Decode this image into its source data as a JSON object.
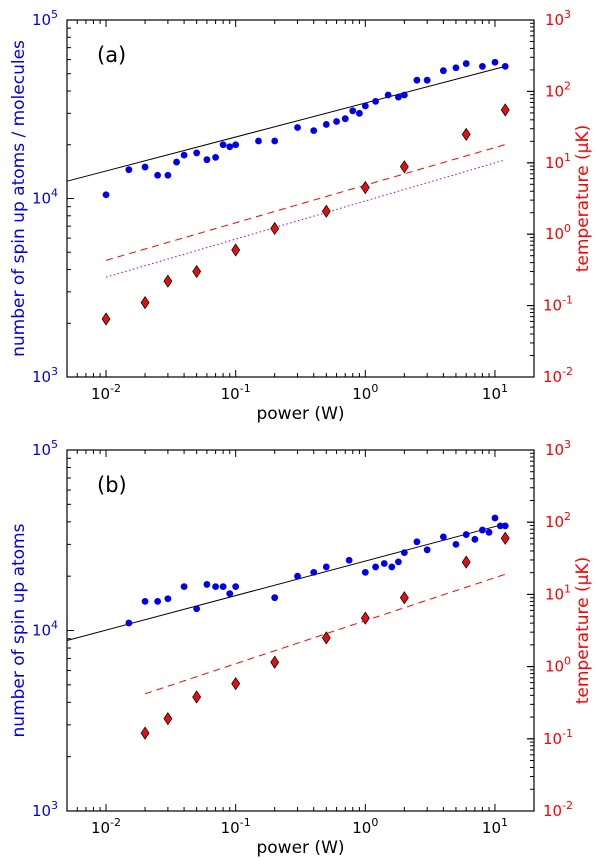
{
  "colors": {
    "atoms": "#0000ee",
    "temperature": "#ff0000",
    "diamond_fill": "#dd1111",
    "fit_line": "#000000",
    "dotted_line": "#aa00cc"
  },
  "chart_data": [
    {
      "type": "scatter",
      "panel_label": "(a)",
      "xlabel": "power (W)",
      "ylabel_left": "number of spin up atoms /  molecules",
      "ylabel_right": "temperature (μK)",
      "xscale": "log",
      "yscale_left": "log",
      "yscale_right": "log",
      "xlim": [
        0.005,
        20
      ],
      "ylim_left": [
        1000,
        100000
      ],
      "ylim_right": [
        0.01,
        1000
      ],
      "x_ticks": [
        "10",
        "10",
        "10",
        "10"
      ],
      "x_tick_exponents": [
        "-2",
        "-1",
        "0",
        "1"
      ],
      "y_left_ticks": [
        "10",
        "10",
        "10"
      ],
      "y_left_tick_exponents": [
        "3",
        "4",
        "5"
      ],
      "y_right_ticks": [
        "10",
        "10",
        "10",
        "10",
        "10",
        "10"
      ],
      "y_right_tick_exponents": [
        "-2",
        "-1",
        "0",
        "1",
        "2",
        "3"
      ],
      "series": [
        {
          "axis": "left",
          "marker": "circle",
          "x": [
            0.01,
            0.015,
            0.02,
            0.025,
            0.03,
            0.035,
            0.04,
            0.05,
            0.06,
            0.07,
            0.08,
            0.09,
            0.1,
            0.15,
            0.2,
            0.3,
            0.4,
            0.5,
            0.6,
            0.7,
            0.8,
            0.9,
            1.0,
            1.2,
            1.5,
            1.8,
            2.0,
            2.5,
            3.0,
            4.0,
            5.0,
            6.0,
            8.0,
            10.0,
            12.0
          ],
          "y": [
            10500,
            14500,
            15000,
            13500,
            13500,
            16000,
            17500,
            18000,
            16500,
            17000,
            20000,
            19500,
            20000,
            21000,
            21000,
            25000,
            24000,
            26000,
            27000,
            28000,
            31000,
            30000,
            33000,
            35000,
            38000,
            37000,
            38000,
            46000,
            46000,
            52000,
            54000,
            57000,
            55000,
            58000,
            55000
          ]
        },
        {
          "axis": "right",
          "marker": "diamond",
          "x": [
            0.01,
            0.02,
            0.03,
            0.05,
            0.1,
            0.2,
            0.5,
            1.0,
            2.0,
            6.0,
            12.0
          ],
          "y": [
            0.065,
            0.11,
            0.22,
            0.3,
            0.6,
            1.2,
            2.1,
            4.5,
            8.8,
            25,
            55
          ]
        }
      ],
      "lines": [
        {
          "axis": "left",
          "style": "solid",
          "x": [
            0.005,
            12.0
          ],
          "y": [
            12500,
            55000
          ]
        },
        {
          "axis": "right",
          "style": "dashed",
          "x": [
            0.01,
            12.0
          ],
          "y": [
            0.43,
            18
          ]
        },
        {
          "axis": "right",
          "style": "dotted",
          "x": [
            0.01,
            12.0
          ],
          "y": [
            0.25,
            11
          ]
        }
      ]
    },
    {
      "type": "scatter",
      "panel_label": "(b)",
      "xlabel": "power (W)",
      "ylabel_left": "number of spin up atoms",
      "ylabel_right": "temperature (μK)",
      "xscale": "log",
      "yscale_left": "log",
      "yscale_right": "log",
      "xlim": [
        0.005,
        20
      ],
      "ylim_left": [
        1000,
        100000
      ],
      "ylim_right": [
        0.01,
        1000
      ],
      "x_ticks": [
        "10",
        "10",
        "10",
        "10"
      ],
      "x_tick_exponents": [
        "-2",
        "-1",
        "0",
        "1"
      ],
      "y_left_ticks": [
        "10",
        "10",
        "10"
      ],
      "y_left_tick_exponents": [
        "3",
        "4",
        "5"
      ],
      "y_right_ticks": [
        "10",
        "10",
        "10",
        "10",
        "10",
        "10"
      ],
      "y_right_tick_exponents": [
        "-2",
        "-1",
        "0",
        "1",
        "2",
        "3"
      ],
      "series": [
        {
          "axis": "left",
          "marker": "circle",
          "x": [
            0.015,
            0.02,
            0.025,
            0.03,
            0.04,
            0.05,
            0.06,
            0.07,
            0.08,
            0.09,
            0.1,
            0.2,
            0.3,
            0.4,
            0.5,
            0.75,
            1.0,
            1.2,
            1.4,
            1.6,
            1.8,
            2.0,
            2.5,
            3.0,
            4.0,
            5.0,
            6.0,
            7.0,
            8.0,
            9.0,
            10.0,
            11.0,
            12.0
          ],
          "y": [
            11000,
            14500,
            14500,
            15000,
            17500,
            13200,
            18000,
            17500,
            17500,
            16000,
            17500,
            15200,
            20000,
            21000,
            22500,
            24500,
            21000,
            22500,
            23500,
            22500,
            24000,
            27000,
            31000,
            28000,
            33000,
            30000,
            34000,
            32000,
            36000,
            35000,
            42000,
            38000,
            38000
          ]
        },
        {
          "axis": "right",
          "marker": "diamond",
          "x": [
            0.02,
            0.03,
            0.05,
            0.1,
            0.2,
            0.5,
            1.0,
            2.0,
            6.0,
            12.0
          ],
          "y": [
            0.12,
            0.19,
            0.38,
            0.58,
            1.15,
            2.5,
            4.7,
            9.0,
            28,
            60
          ]
        }
      ],
      "lines": [
        {
          "axis": "left",
          "style": "solid",
          "x": [
            0.005,
            12.0
          ],
          "y": [
            8800,
            39000
          ]
        },
        {
          "axis": "right",
          "style": "dashed",
          "x": [
            0.02,
            12.0
          ],
          "y": [
            0.42,
            19
          ]
        }
      ]
    }
  ]
}
